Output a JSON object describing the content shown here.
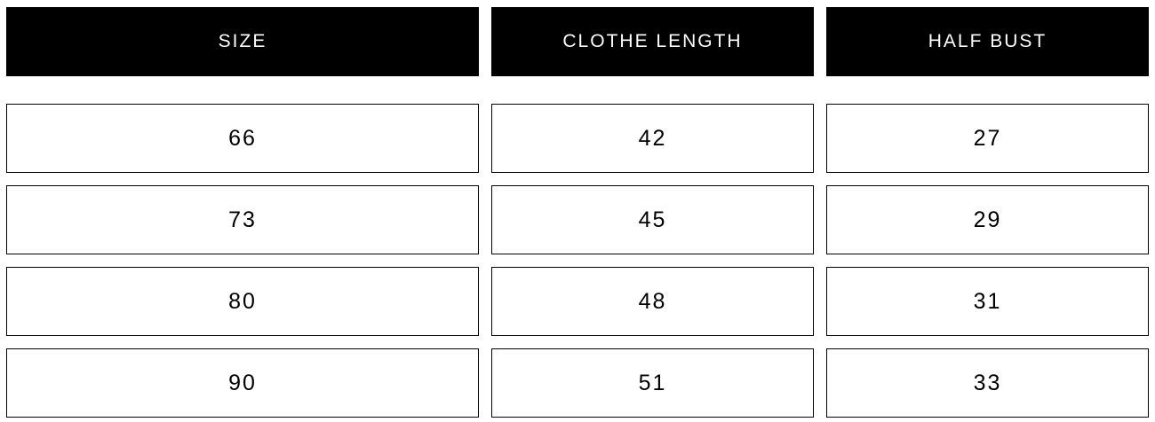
{
  "table": {
    "headers": [
      "SIZE",
      "CLOTHE LENGTH",
      "HALF BUST"
    ],
    "rows": [
      [
        66,
        42,
        27
      ],
      [
        73,
        45,
        29
      ],
      [
        80,
        48,
        31
      ],
      [
        90,
        51,
        33
      ]
    ]
  }
}
